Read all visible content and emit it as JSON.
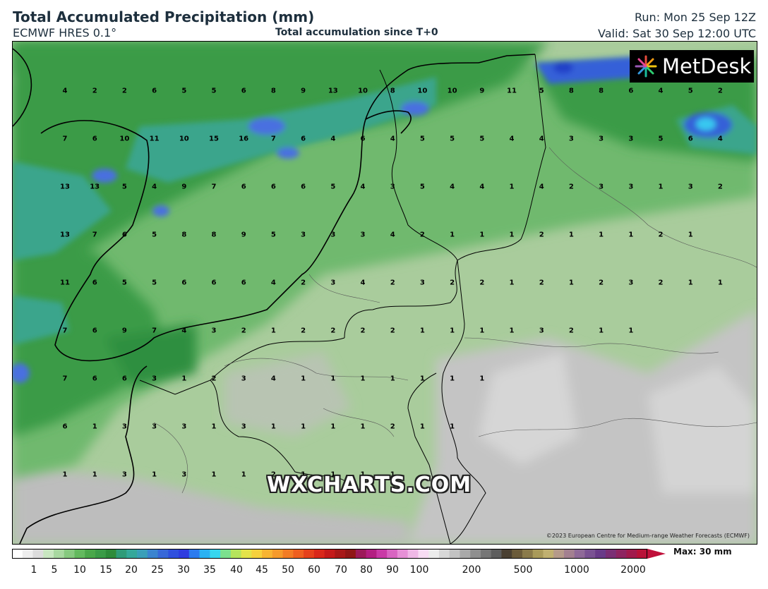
{
  "header": {
    "title": "Total Accumulated Precipitation (mm)",
    "model": "ECMWF HRES 0.1°",
    "subtitle": "Total accumulation since T+0",
    "run": "Run: Mon 25 Sep 12Z",
    "valid": "Valid: Sat 30 Sep 12:00 UTC"
  },
  "branding": {
    "logo": "MetDesk",
    "watermark": "WXCHARTS.COM",
    "copyright": "©2023 European Centre for Medium-range Weather Forecasts (ECMWF)"
  },
  "legend": {
    "ticks": [
      "1",
      "5",
      "10",
      "15",
      "20",
      "25",
      "30",
      "35",
      "40",
      "45",
      "50",
      "60",
      "70",
      "80",
      "90",
      "100",
      "200",
      "500",
      "1000",
      "2000"
    ],
    "max_label": "Max: 30 mm"
  },
  "colors": {
    "land_light": "#a9cc9c",
    "green_mid": "#6ab56a",
    "green_dark": "#2f8f3f",
    "teal": "#3aa58c",
    "blue": "#3560d8",
    "cyan": "#38c8f0",
    "grey": "#c6c6c6"
  },
  "grid_values": [
    [
      4,
      2,
      2,
      6,
      5,
      5,
      6,
      8,
      9,
      13,
      10,
      8,
      10,
      10,
      9,
      11,
      5,
      8,
      8,
      6,
      4,
      5,
      2
    ],
    [
      7,
      6,
      10,
      11,
      10,
      15,
      16,
      7,
      6,
      4,
      6,
      4,
      5,
      5,
      5,
      4,
      4,
      3,
      3,
      3,
      5,
      6,
      4
    ],
    [
      13,
      13,
      5,
      4,
      9,
      7,
      6,
      6,
      6,
      5,
      4,
      3,
      5,
      4,
      4,
      1,
      4,
      2,
      3,
      3,
      1,
      3,
      2
    ],
    [
      13,
      7,
      6,
      5,
      8,
      8,
      9,
      5,
      3,
      3,
      3,
      4,
      2,
      1,
      1,
      1,
      2,
      1,
      1,
      1,
      2,
      1
    ],
    [
      11,
      6,
      5,
      5,
      6,
      6,
      6,
      4,
      2,
      3,
      4,
      2,
      3,
      2,
      2,
      1,
      2,
      1,
      2,
      3,
      2,
      1,
      1
    ],
    [
      7,
      6,
      9,
      7,
      4,
      3,
      2,
      1,
      2,
      2,
      2,
      2,
      1,
      1,
      1,
      1,
      3,
      2,
      1,
      1
    ],
    [
      7,
      6,
      6,
      3,
      1,
      2,
      3,
      4,
      1,
      1,
      1,
      1,
      1,
      1,
      1
    ],
    [
      6,
      1,
      3,
      3,
      3,
      1,
      3,
      1,
      1,
      1,
      1,
      2,
      1,
      1
    ],
    [
      1,
      1,
      3,
      1,
      3,
      1,
      1,
      2,
      1,
      1,
      1,
      1
    ]
  ]
}
